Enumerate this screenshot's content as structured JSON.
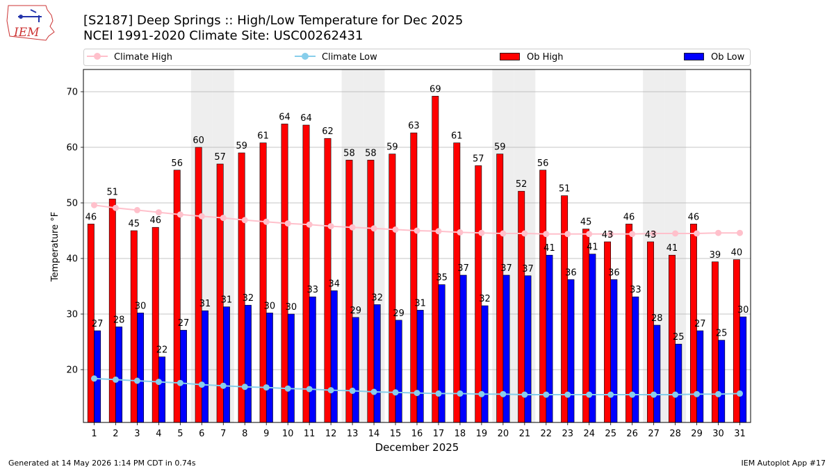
{
  "header": {
    "title": "[S2187] Deep Springs :: High/Low Temperature for Dec 2025",
    "subtitle": "NCEI 1991-2020 Climate Site: USC00262431",
    "logo_text": "IEM"
  },
  "footer": {
    "left": "Generated at 14 May 2026 1:14 PM CDT in 0.74s",
    "right": "IEM Autoplot App #17"
  },
  "colors": {
    "ob_high": "#ff0000",
    "ob_low": "#0000ff",
    "climate_high": "#ffc0cb",
    "climate_low": "#87ceeb",
    "weekend_band": "#eeeeee",
    "grid": "#b0b0b0"
  },
  "chart_data": {
    "type": "bar",
    "xlabel": "December 2025",
    "ylabel": "Temperature °F",
    "ylim": [
      10.5,
      74
    ],
    "yticks": [
      20,
      30,
      40,
      50,
      60,
      70
    ],
    "categories": [
      "1",
      "2",
      "3",
      "4",
      "5",
      "6",
      "7",
      "8",
      "9",
      "10",
      "11",
      "12",
      "13",
      "14",
      "15",
      "16",
      "17",
      "18",
      "19",
      "20",
      "21",
      "22",
      "23",
      "24",
      "25",
      "26",
      "27",
      "28",
      "29",
      "30",
      "31"
    ],
    "grid": "horizontal",
    "shaded_days": [
      "6",
      "7",
      "13",
      "14",
      "20",
      "21",
      "27",
      "28"
    ],
    "legend": {
      "placement": "top",
      "entries": [
        "Climate High",
        "Climate Low",
        "Ob High",
        "Ob Low"
      ]
    },
    "series": [
      {
        "name": "Ob High",
        "kind": "bar",
        "values": [
          46.2,
          50.7,
          45,
          45.6,
          55.9,
          60,
          57,
          59,
          60.8,
          64.2,
          64,
          61.6,
          57.7,
          57.7,
          58.8,
          62.6,
          69.2,
          60.8,
          56.7,
          58.8,
          52.1,
          55.9,
          51.3,
          45.3,
          43,
          46.2,
          43,
          40.6,
          46.2,
          39.4,
          39.8
        ],
        "labels": [
          "46",
          "51",
          "45",
          "46",
          "56",
          "60",
          "57",
          "59",
          "61",
          "64",
          "64",
          "62",
          "58",
          "58",
          "59",
          "63",
          "69",
          "61",
          "57",
          "59",
          "52",
          "56",
          "51",
          "45",
          "43",
          "46",
          "43",
          "41",
          "46",
          "39",
          "40"
        ]
      },
      {
        "name": "Ob Low",
        "kind": "bar",
        "values": [
          27,
          27.7,
          30.2,
          22.3,
          27.1,
          30.6,
          31.3,
          31.6,
          30.2,
          30,
          33.1,
          34.2,
          29.4,
          31.7,
          28.9,
          30.7,
          35.3,
          37,
          31.5,
          37,
          36.9,
          40.6,
          36.2,
          40.8,
          36.2,
          33.1,
          28,
          24.6,
          27,
          25.3,
          29.5
        ],
        "labels": [
          "27",
          "28",
          "30",
          "22",
          "27",
          "31",
          "31",
          "32",
          "30",
          "30",
          "33",
          "34",
          "29",
          "32",
          "29",
          "31",
          "35",
          "37",
          "32",
          "37",
          "37",
          "41",
          "36",
          "41",
          "36",
          "33",
          "28",
          "25",
          "27",
          "25",
          "30"
        ]
      },
      {
        "name": "Climate High",
        "kind": "line",
        "values": [
          49.6,
          49.1,
          48.7,
          48.3,
          47.9,
          47.6,
          47.3,
          46.9,
          46.6,
          46.3,
          46.1,
          45.8,
          45.6,
          45.4,
          45.2,
          45,
          44.9,
          44.7,
          44.6,
          44.5,
          44.5,
          44.4,
          44.4,
          44.4,
          44.4,
          44.4,
          44.5,
          44.5,
          44.5,
          44.6,
          44.6
        ]
      },
      {
        "name": "Climate Low",
        "kind": "line",
        "values": [
          18.4,
          18.2,
          18,
          17.8,
          17.6,
          17.3,
          17.1,
          16.9,
          16.8,
          16.6,
          16.5,
          16.3,
          16.2,
          16,
          15.9,
          15.8,
          15.7,
          15.7,
          15.6,
          15.6,
          15.5,
          15.5,
          15.5,
          15.5,
          15.5,
          15.5,
          15.5,
          15.5,
          15.6,
          15.6,
          15.7
        ]
      }
    ]
  }
}
